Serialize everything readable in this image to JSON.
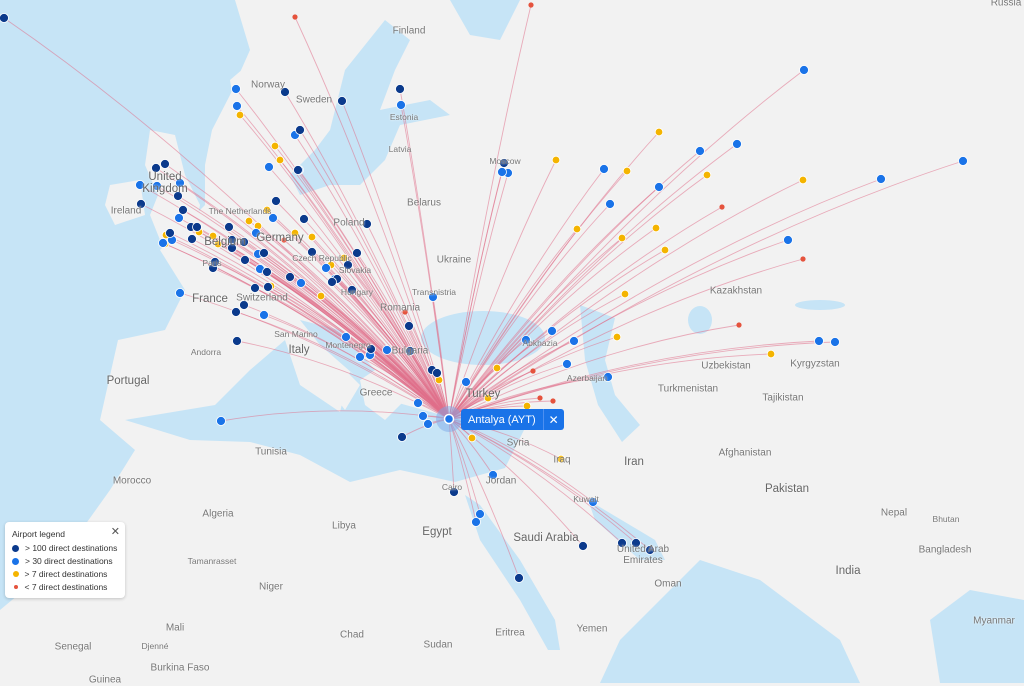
{
  "origin": {
    "label": "Antalya (AYT)",
    "close_icon": "close-icon"
  },
  "legend": {
    "title": "Airport legend",
    "close_icon": "close-icon",
    "items": [
      {
        "label": "> 100 direct destinations",
        "color": "#0b3a8c"
      },
      {
        "label": "> 30 direct destinations",
        "color": "#1a73e8"
      },
      {
        "label": "> 7 direct destinations",
        "color": "#f4b400"
      },
      {
        "label": "< 7 direct destinations",
        "color": "#e5533d"
      }
    ]
  },
  "colors": {
    "water": "#c6e4f6",
    "land": "#f2f2f2",
    "route": "#e0708a"
  },
  "labels": {
    "russia": "Russia",
    "finland": "Finland",
    "norway": "Norway",
    "sweden": "Sweden",
    "estonia": "Estonia",
    "latvia": "Latvia",
    "uk": "United Kingdom",
    "ireland": "Ireland",
    "belarus": "Belarus",
    "poland": "Poland",
    "ukraine": "Ukraine",
    "moscow": "Moscow",
    "netherlands": "The Netherlands",
    "belgium": "Belgium",
    "germany": "Germany",
    "paris": "Paris",
    "czech": "Czech Republic",
    "slovakia": "Slovakia",
    "hungary": "Hungary",
    "switzerland": "Switzerland",
    "france": "France",
    "transnistria": "Transnistria",
    "romania": "Romania",
    "kazakhstan": "Kazakhstan",
    "italy": "Italy",
    "san_marino": "San Marino",
    "montenegro": "Montenegro",
    "bulgaria": "Bulgaria",
    "andorra": "Andorra",
    "portugal": "Portugal",
    "greece": "Greece",
    "turkey": "Turkey",
    "abkhazia": "Abkhazia",
    "azerbaijan": "Azerbaijan",
    "turkmenistan": "Turkmenistan",
    "uzbekistan": "Uzbekistan",
    "kyrgyzstan": "Kyrgyzstan",
    "tajikistan": "Tajikistan",
    "tunisia": "Tunisia",
    "syria": "Syria",
    "iraq": "Iraq",
    "iran": "Iran",
    "afghanistan": "Afghanistan",
    "pakistan": "Pakistan",
    "morocco": "Morocco",
    "algeria": "Algeria",
    "libya": "Libya",
    "egypt": "Egypt",
    "cairo": "Cairo",
    "jordan": "Jordan",
    "saudi": "Saudi Arabia",
    "kuwait": "Kuwait",
    "uae": "United Arab Emirates",
    "oman": "Oman",
    "nepal": "Nepal",
    "bhutan": "Bhutan",
    "bangladesh": "Bangladesh",
    "india": "India",
    "tamanrasset": "Tamanrasset",
    "niger": "Niger",
    "mali": "Mali",
    "chad": "Chad",
    "sudan": "Sudan",
    "eritrea": "Eritrea",
    "yemen": "Yemen",
    "senegal": "Senegal",
    "djenne": "Djenné",
    "burkina": "Burkina Faso",
    "guinea": "Guinea",
    "myanmar": "Myanmar"
  }
}
